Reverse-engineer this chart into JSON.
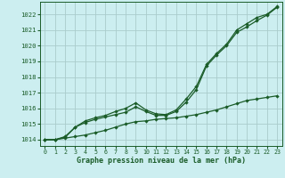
{
  "bg_color": "#cceef0",
  "plot_bg_color": "#cceef0",
  "grid_color": "#aacccc",
  "line_color": "#1a5c28",
  "xlim_min": -0.5,
  "xlim_max": 23.5,
  "ylim_min": 1013.6,
  "ylim_max": 1022.8,
  "xticks": [
    0,
    1,
    2,
    3,
    4,
    5,
    6,
    7,
    8,
    9,
    10,
    11,
    12,
    13,
    14,
    15,
    16,
    17,
    18,
    19,
    20,
    21,
    22,
    23
  ],
  "yticks": [
    1014,
    1015,
    1016,
    1017,
    1018,
    1019,
    1020,
    1021,
    1022
  ],
  "xlabel": "Graphe pression niveau de la mer (hPa)",
  "series1_x": [
    0,
    1,
    2,
    3,
    4,
    5,
    6,
    7,
    8,
    9,
    10,
    11,
    12,
    13,
    14,
    15,
    16,
    17,
    18,
    19,
    20,
    21,
    22,
    23
  ],
  "series1_y": [
    1014.0,
    1014.0,
    1014.2,
    1014.8,
    1015.2,
    1015.4,
    1015.55,
    1015.8,
    1016.0,
    1016.35,
    1015.9,
    1015.65,
    1015.6,
    1015.9,
    1016.6,
    1017.4,
    1018.8,
    1019.5,
    1020.1,
    1021.0,
    1021.4,
    1021.8,
    1022.0,
    1022.5
  ],
  "series2_x": [
    0,
    1,
    2,
    3,
    4,
    5,
    6,
    7,
    8,
    9,
    10,
    11,
    12,
    13,
    14,
    15,
    16,
    17,
    18,
    19,
    20,
    21,
    22,
    23
  ],
  "series2_y": [
    1014.0,
    1014.0,
    1014.15,
    1014.8,
    1015.1,
    1015.3,
    1015.45,
    1015.6,
    1015.75,
    1016.1,
    1015.8,
    1015.55,
    1015.55,
    1015.8,
    1016.4,
    1017.2,
    1018.7,
    1019.4,
    1020.0,
    1020.85,
    1021.2,
    1021.6,
    1021.95,
    1022.45
  ],
  "series3_x": [
    0,
    1,
    2,
    3,
    4,
    5,
    6,
    7,
    8,
    9,
    10,
    11,
    12,
    13,
    14,
    15,
    16,
    17,
    18,
    19,
    20,
    21,
    22,
    23
  ],
  "series3_y": [
    1014.0,
    1014.0,
    1014.1,
    1014.2,
    1014.3,
    1014.45,
    1014.6,
    1014.8,
    1015.0,
    1015.15,
    1015.2,
    1015.3,
    1015.35,
    1015.4,
    1015.5,
    1015.6,
    1015.75,
    1015.9,
    1016.1,
    1016.3,
    1016.5,
    1016.6,
    1016.7,
    1016.8
  ]
}
